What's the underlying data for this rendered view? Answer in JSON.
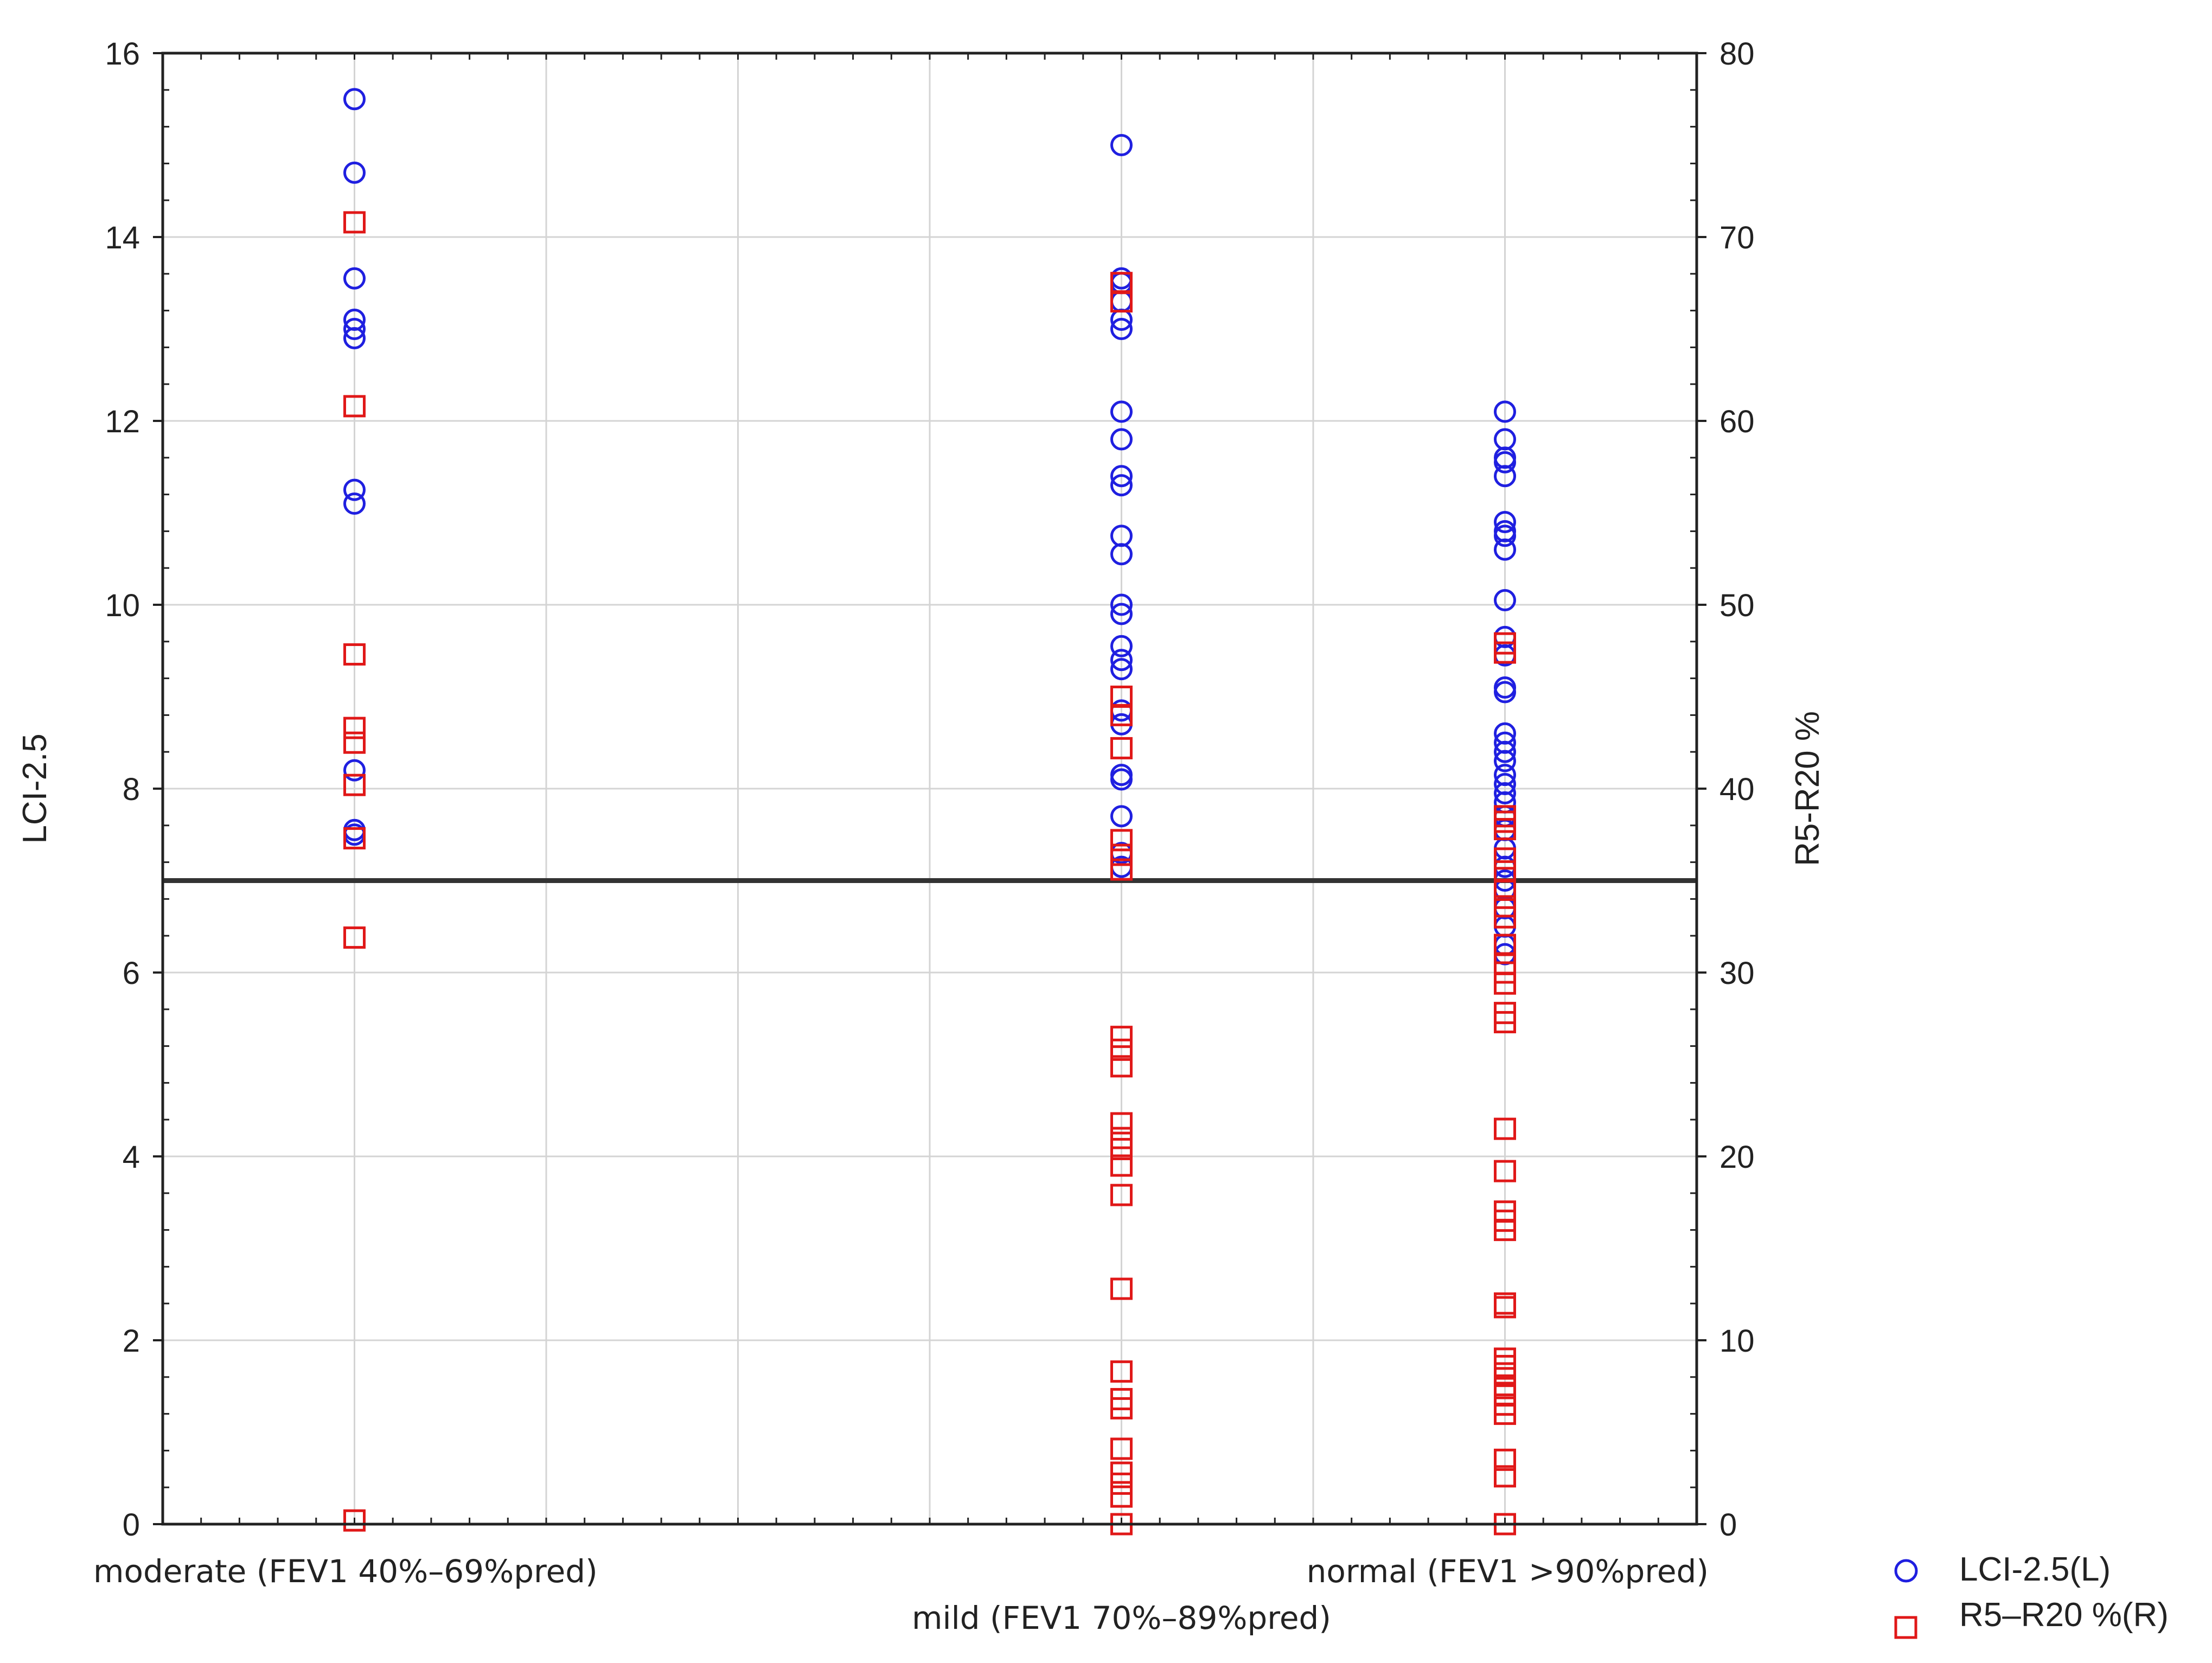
{
  "chart_data": {
    "type": "scatter",
    "title": "",
    "categories": [
      "moderate (FEV1 40%–69%pred)",
      "mild (FEV1 70%–89%pred)",
      "normal (FEV1 >90%pred)"
    ],
    "x_range": [
      0,
      8
    ],
    "category_x": [
      1,
      5,
      7
    ],
    "ylabel_left": "LCI-2.5",
    "ylabel_right": "R5-R20 %",
    "ylim_left": [
      0,
      16
    ],
    "ylim_right": [
      0,
      80
    ],
    "yticks_left": [
      "0",
      "2",
      "4",
      "6",
      "8",
      "10",
      "12",
      "14",
      "16"
    ],
    "yticks_right": [
      "0",
      "10",
      "20",
      "30",
      "40",
      "50",
      "60",
      "70",
      "80"
    ],
    "reference_line_left": 7,
    "grid": true,
    "legend_position": "right-bottom",
    "series": [
      {
        "name": "LCI-2.5(L)",
        "axis": "left",
        "marker": "circle",
        "color": "#1f1fe0",
        "points": [
          {
            "category": 0,
            "values": [
              15.5,
              14.7,
              13.55,
              13.1,
              13.0,
              12.9,
              11.25,
              11.1,
              8.2,
              7.55,
              7.5
            ]
          },
          {
            "category": 1,
            "values": [
              15.0,
              13.55,
              13.5,
              13.3,
              13.1,
              13.0,
              12.1,
              11.8,
              11.4,
              11.3,
              10.75,
              10.55,
              10.0,
              9.9,
              9.55,
              9.4,
              9.3,
              8.85,
              8.7,
              8.15,
              8.1,
              7.7,
              7.3,
              7.15
            ]
          },
          {
            "category": 2,
            "values": [
              12.1,
              11.8,
              11.6,
              11.55,
              11.4,
              10.9,
              10.8,
              10.75,
              10.6,
              10.05,
              9.65,
              9.45,
              9.1,
              9.05,
              8.6,
              8.5,
              8.4,
              8.3,
              8.15,
              8.05,
              7.95,
              7.85,
              7.7,
              7.55,
              7.35,
              7.15,
              7.0,
              6.9,
              6.7,
              6.5,
              6.3,
              6.2
            ]
          }
        ]
      },
      {
        "name": "R5–R20 %(R)",
        "axis": "right",
        "marker": "square",
        "color": "#e01818",
        "points": [
          {
            "category": 0,
            "values": [
              70.8,
              60.8,
              47.3,
              43.3,
              42.5,
              40.2,
              37.3,
              31.9,
              0.2
            ]
          },
          {
            "category": 1,
            "values": [
              67.5,
              66.5,
              45.0,
              44.0,
              42.2,
              37.2,
              36.4,
              35.6,
              26.5,
              25.8,
              24.9,
              21.8,
              21.0,
              20.4,
              19.5,
              17.9,
              12.8,
              8.3,
              6.8,
              6.3,
              4.1,
              2.8,
              2.2,
              1.5,
              0.0
            ]
          },
          {
            "category": 2,
            "values": [
              47.9,
              47.4,
              38.5,
              38.2,
              37.8,
              36.2,
              35.5,
              34.5,
              33.6,
              33.0,
              31.5,
              30.5,
              30.0,
              29.4,
              27.8,
              27.3,
              21.5,
              19.2,
              17.0,
              16.5,
              16.0,
              12.0,
              11.8,
              9.0,
              8.6,
              8.2,
              7.4,
              7.0,
              6.5,
              6.0,
              3.5,
              2.6,
              0.0
            ]
          }
        ]
      }
    ]
  }
}
